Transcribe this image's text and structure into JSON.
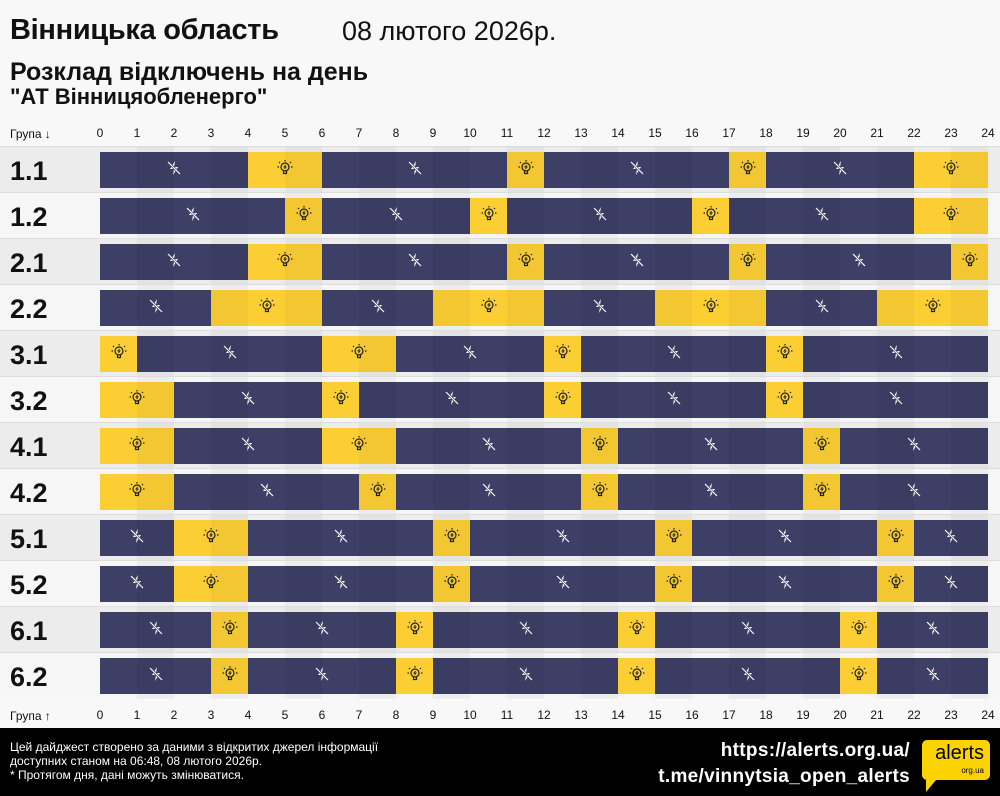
{
  "header": {
    "title": "Вінницька область",
    "date": "08 лютого 2026р.",
    "subtitle": "Розклад відключень на день",
    "company": "\"АТ Вінницяобленерго\""
  },
  "axis": {
    "top_label": "Група ↓",
    "bottom_label": "Група ↑",
    "hours": [
      "0",
      "1",
      "2",
      "3",
      "4",
      "5",
      "6",
      "7",
      "8",
      "9",
      "10",
      "11",
      "12",
      "13",
      "14",
      "15",
      "16",
      "17",
      "18",
      "19",
      "20",
      "21",
      "22",
      "23",
      "24"
    ]
  },
  "legend_icons": {
    "on": "lightbulb-icon",
    "off": "crossed-lightning-icon"
  },
  "colors": {
    "off": "#3d3f66",
    "on": "#fbcf33"
  },
  "groups": [
    {
      "name": "1.1",
      "segments": [
        [
          "off",
          0,
          4
        ],
        [
          "on",
          4,
          6
        ],
        [
          "off",
          6,
          11
        ],
        [
          "on",
          11,
          12
        ],
        [
          "off",
          12,
          17
        ],
        [
          "on",
          17,
          18
        ],
        [
          "off",
          18,
          22
        ],
        [
          "on",
          22,
          24
        ]
      ]
    },
    {
      "name": "1.2",
      "segments": [
        [
          "off",
          0,
          5
        ],
        [
          "on",
          5,
          6
        ],
        [
          "off",
          6,
          10
        ],
        [
          "on",
          10,
          11
        ],
        [
          "off",
          11,
          16
        ],
        [
          "on",
          16,
          17
        ],
        [
          "off",
          17,
          22
        ],
        [
          "on",
          22,
          24
        ]
      ]
    },
    {
      "name": "2.1",
      "segments": [
        [
          "off",
          0,
          4
        ],
        [
          "on",
          4,
          6
        ],
        [
          "off",
          6,
          11
        ],
        [
          "on",
          11,
          12
        ],
        [
          "off",
          12,
          17
        ],
        [
          "on",
          17,
          18
        ],
        [
          "off",
          18,
          23
        ],
        [
          "on",
          23,
          24
        ]
      ]
    },
    {
      "name": "2.2",
      "segments": [
        [
          "off",
          0,
          3
        ],
        [
          "on",
          3,
          6
        ],
        [
          "off",
          6,
          9
        ],
        [
          "on",
          9,
          12
        ],
        [
          "off",
          12,
          15
        ],
        [
          "on",
          15,
          18
        ],
        [
          "off",
          18,
          21
        ],
        [
          "on",
          21,
          24
        ]
      ]
    },
    {
      "name": "3.1",
      "segments": [
        [
          "on",
          0,
          1
        ],
        [
          "off",
          1,
          6
        ],
        [
          "on",
          6,
          8
        ],
        [
          "off",
          8,
          12
        ],
        [
          "on",
          12,
          13
        ],
        [
          "off",
          13,
          18
        ],
        [
          "on",
          18,
          19
        ],
        [
          "off",
          19,
          24
        ]
      ]
    },
    {
      "name": "3.2",
      "segments": [
        [
          "on",
          0,
          2
        ],
        [
          "off",
          2,
          6
        ],
        [
          "on",
          6,
          7
        ],
        [
          "off",
          7,
          12
        ],
        [
          "on",
          12,
          13
        ],
        [
          "off",
          13,
          18
        ],
        [
          "on",
          18,
          19
        ],
        [
          "off",
          19,
          24
        ]
      ]
    },
    {
      "name": "4.1",
      "segments": [
        [
          "on",
          0,
          2
        ],
        [
          "off",
          2,
          6
        ],
        [
          "on",
          6,
          8
        ],
        [
          "off",
          8,
          13
        ],
        [
          "on",
          13,
          14
        ],
        [
          "off",
          14,
          19
        ],
        [
          "on",
          19,
          20
        ],
        [
          "off",
          20,
          24
        ]
      ]
    },
    {
      "name": "4.2",
      "segments": [
        [
          "on",
          0,
          2
        ],
        [
          "off",
          2,
          7
        ],
        [
          "on",
          7,
          8
        ],
        [
          "off",
          8,
          13
        ],
        [
          "on",
          13,
          14
        ],
        [
          "off",
          14,
          19
        ],
        [
          "on",
          19,
          20
        ],
        [
          "off",
          20,
          24
        ]
      ]
    },
    {
      "name": "5.1",
      "segments": [
        [
          "off",
          0,
          2
        ],
        [
          "on",
          2,
          4
        ],
        [
          "off",
          4,
          9
        ],
        [
          "on",
          9,
          10
        ],
        [
          "off",
          10,
          15
        ],
        [
          "on",
          15,
          16
        ],
        [
          "off",
          16,
          21
        ],
        [
          "on",
          21,
          22
        ],
        [
          "off",
          22,
          24
        ]
      ]
    },
    {
      "name": "5.2",
      "segments": [
        [
          "off",
          0,
          2
        ],
        [
          "on",
          2,
          4
        ],
        [
          "off",
          4,
          9
        ],
        [
          "on",
          9,
          10
        ],
        [
          "off",
          10,
          15
        ],
        [
          "on",
          15,
          16
        ],
        [
          "off",
          16,
          21
        ],
        [
          "on",
          21,
          22
        ],
        [
          "off",
          22,
          24
        ]
      ]
    },
    {
      "name": "6.1",
      "segments": [
        [
          "off",
          0,
          3
        ],
        [
          "on",
          3,
          4
        ],
        [
          "off",
          4,
          8
        ],
        [
          "on",
          8,
          9
        ],
        [
          "off",
          9,
          14
        ],
        [
          "on",
          14,
          15
        ],
        [
          "off",
          15,
          20
        ],
        [
          "on",
          20,
          21
        ],
        [
          "off",
          21,
          24
        ]
      ]
    },
    {
      "name": "6.2",
      "segments": [
        [
          "off",
          0,
          3
        ],
        [
          "on",
          3,
          4
        ],
        [
          "off",
          4,
          8
        ],
        [
          "on",
          8,
          9
        ],
        [
          "off",
          9,
          14
        ],
        [
          "on",
          14,
          15
        ],
        [
          "off",
          15,
          20
        ],
        [
          "on",
          20,
          21
        ],
        [
          "off",
          21,
          24
        ]
      ]
    }
  ],
  "footer": {
    "line1": "Цей дайджест створено за даними з відкритих джерел інформації",
    "line2": "доступних станом на 06:48, 08 лютого 2026р.",
    "line3": "* Протягом дня, дані можуть змінюватися.",
    "link1": "https://alerts.org.ua/",
    "link2": "t.me/vinnytsia_open_alerts",
    "logo_main": "alerts",
    "logo_sub": "org.ua"
  }
}
